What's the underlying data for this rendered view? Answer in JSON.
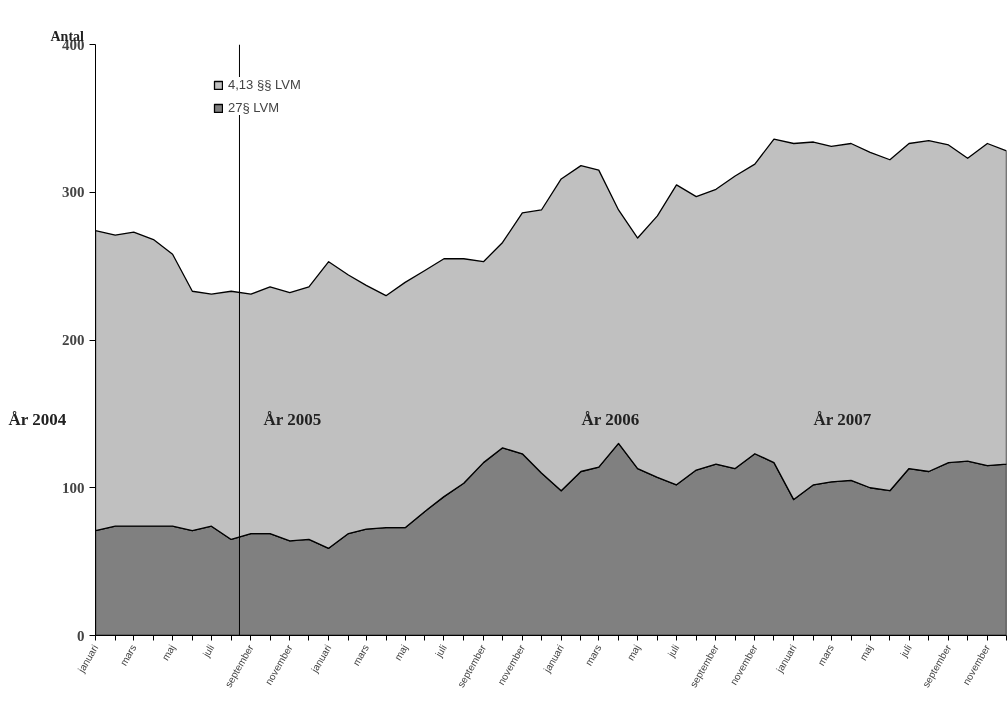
{
  "chart_data": {
    "type": "area",
    "stacked": true,
    "ylabel": "Antal",
    "x": [
      "2004-01",
      "2004-02",
      "2004-03",
      "2004-04",
      "2004-05",
      "2004-06",
      "2004-07",
      "2004-08",
      "2004-09",
      "2004-10",
      "2004-11",
      "2004-12",
      "2005-01",
      "2005-02",
      "2005-03",
      "2005-04",
      "2005-05",
      "2005-06",
      "2005-07",
      "2005-08",
      "2005-09",
      "2005-10",
      "2005-11",
      "2005-12",
      "2006-01",
      "2006-02",
      "2006-03",
      "2006-04",
      "2006-05",
      "2006-06",
      "2006-07",
      "2006-08",
      "2006-09",
      "2006-10",
      "2006-11",
      "2006-12",
      "2007-01",
      "2007-02",
      "2007-03",
      "2007-04",
      "2007-05",
      "2007-06",
      "2007-07",
      "2007-08",
      "2007-09",
      "2007-10",
      "2007-11",
      "2007-12"
    ],
    "series": [
      {
        "name": "27§ LVM",
        "color": "#808080",
        "values": [
          71,
          74,
          74,
          74,
          74,
          71,
          74,
          65,
          69,
          69,
          64,
          65,
          59,
          69,
          72,
          73,
          73,
          84,
          94,
          103,
          117,
          127,
          123,
          110,
          98,
          111,
          114,
          130,
          113,
          107,
          102,
          112,
          116,
          113,
          123,
          117,
          92,
          102,
          104,
          105,
          100,
          98,
          113,
          111,
          117,
          118,
          115,
          116
        ]
      },
      {
        "name": "4,13 §§ LVM",
        "color": "#c0c0c0",
        "values": [
          203,
          197,
          199,
          194,
          184,
          162,
          157,
          168,
          162,
          167,
          168,
          171,
          194,
          175,
          165,
          157,
          166,
          163,
          161,
          152,
          136,
          139,
          163,
          178,
          211,
          207,
          201,
          158,
          156,
          177,
          203,
          185,
          186,
          198,
          196,
          219,
          241,
          232,
          227,
          228,
          227,
          224,
          220,
          224,
          215,
          205,
          218,
          212
        ]
      }
    ],
    "xlim": [
      "2004-01",
      "2007-12"
    ],
    "xticks": [
      {
        "value": "2004-01",
        "label": "januari"
      },
      {
        "value": "2004-02",
        "label": null
      },
      {
        "value": "2004-03",
        "label": "mars"
      },
      {
        "value": "2004-04",
        "label": null
      },
      {
        "value": "2004-05",
        "label": "maj"
      },
      {
        "value": "2004-06",
        "label": null
      },
      {
        "value": "2004-07",
        "label": "juli"
      },
      {
        "value": "2004-08",
        "label": null
      },
      {
        "value": "2004-09",
        "label": "september"
      },
      {
        "value": "2004-10",
        "label": null
      },
      {
        "value": "2004-11",
        "label": "november"
      },
      {
        "value": "2004-12",
        "label": null
      },
      {
        "value": "2005-01",
        "label": "januari"
      },
      {
        "value": "2005-02",
        "label": null
      },
      {
        "value": "2005-03",
        "label": "mars"
      },
      {
        "value": "2005-04",
        "label": null
      },
      {
        "value": "2005-05",
        "label": "maj"
      },
      {
        "value": "2005-06",
        "label": null
      },
      {
        "value": "2005-07",
        "label": "juli"
      },
      {
        "value": "2005-08",
        "label": null
      },
      {
        "value": "2005-09",
        "label": "september"
      },
      {
        "value": "2005-10",
        "label": null
      },
      {
        "value": "2005-11",
        "label": "november"
      },
      {
        "value": "2005-12",
        "label": null
      },
      {
        "value": "2006-01",
        "label": "januari"
      },
      {
        "value": "2006-02",
        "label": null
      },
      {
        "value": "2006-03",
        "label": "mars"
      },
      {
        "value": "2006-04",
        "label": null
      },
      {
        "value": "2006-05",
        "label": "maj"
      },
      {
        "value": "2006-06",
        "label": null
      },
      {
        "value": "2006-07",
        "label": "juli"
      },
      {
        "value": "2006-08",
        "label": null
      },
      {
        "value": "2006-09",
        "label": "september"
      },
      {
        "value": "2006-10",
        "label": null
      },
      {
        "value": "2006-11",
        "label": "november"
      },
      {
        "value": "2006-12",
        "label": null
      },
      {
        "value": "2007-01",
        "label": "januari"
      },
      {
        "value": "2007-02",
        "label": null
      },
      {
        "value": "2007-03",
        "label": "mars"
      },
      {
        "value": "2007-04",
        "label": null
      },
      {
        "value": "2007-05",
        "label": "maj"
      },
      {
        "value": "2007-06",
        "label": null
      },
      {
        "value": "2007-07",
        "label": "juli"
      },
      {
        "value": "2007-08",
        "label": null
      },
      {
        "value": "2007-09",
        "label": "september"
      },
      {
        "value": "2007-10",
        "label": null
      },
      {
        "value": "2007-11",
        "label": "november"
      },
      {
        "value": "2007-12",
        "label": null
      }
    ],
    "ylim": [
      0,
      400
    ],
    "yticks": [
      0,
      100,
      200,
      300,
      400
    ],
    "ref_lines": [
      {
        "axis": "x",
        "value": "2004-08-14",
        "color": "#000000"
      }
    ],
    "annotations": [
      "År 2004",
      "År 2005",
      "År 2006",
      "År 2007"
    ],
    "legend": "top left",
    "grid": false
  }
}
